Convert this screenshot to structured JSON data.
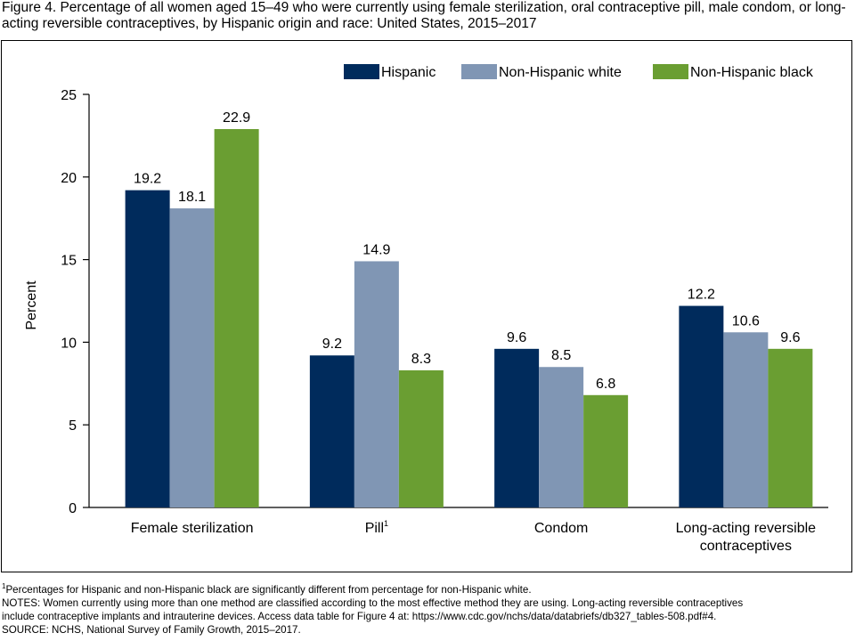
{
  "title": "Figure 4. Percentage of all women aged 15–49 who were currently using female sterilization, oral contraceptive pill, male condom, or long-acting reversible contraceptives, by Hispanic origin and race: United States, 2015–2017",
  "colors": {
    "Hispanic": "#002b5c",
    "Non-Hispanic white": "#8096b4",
    "Non-Hispanic black": "#6a9e32"
  },
  "chart_data": {
    "type": "bar",
    "categories": [
      "Female sterilization",
      "Pill",
      "Condom",
      "Long-acting reversible contraceptives"
    ],
    "category_superscripts": [
      "",
      "1",
      "",
      ""
    ],
    "series": [
      {
        "name": "Hispanic",
        "values": [
          19.2,
          9.2,
          9.6,
          12.2
        ]
      },
      {
        "name": "Non-Hispanic white",
        "values": [
          18.1,
          14.9,
          8.5,
          10.6
        ]
      },
      {
        "name": "Non-Hispanic black",
        "values": [
          22.9,
          8.3,
          6.8,
          9.6
        ]
      }
    ],
    "ylabel": "Percent",
    "xlabel": "",
    "ylim": [
      0,
      25
    ],
    "yticks": [
      0,
      5,
      10,
      15,
      20,
      25
    ],
    "grid": false,
    "legend_position": "top-right"
  },
  "notes": {
    "footnote_marker": "1",
    "footnote": "Percentages for Hispanic and non-Hispanic black are significantly different from percentage for non-Hispanic white.",
    "notes_line1": "NOTES: Women currently using more than one method are classified according to the most effective method they are using. Long-acting reversible contraceptives",
    "notes_line2": "include contraceptive implants and intrauterine devices. Access data table for Figure 4 at: https://www.cdc.gov/nchs/data/databriefs/db327_tables-508.pdf#4.",
    "source": "SOURCE: NCHS, National Survey of Family Growth, 2015–2017."
  }
}
